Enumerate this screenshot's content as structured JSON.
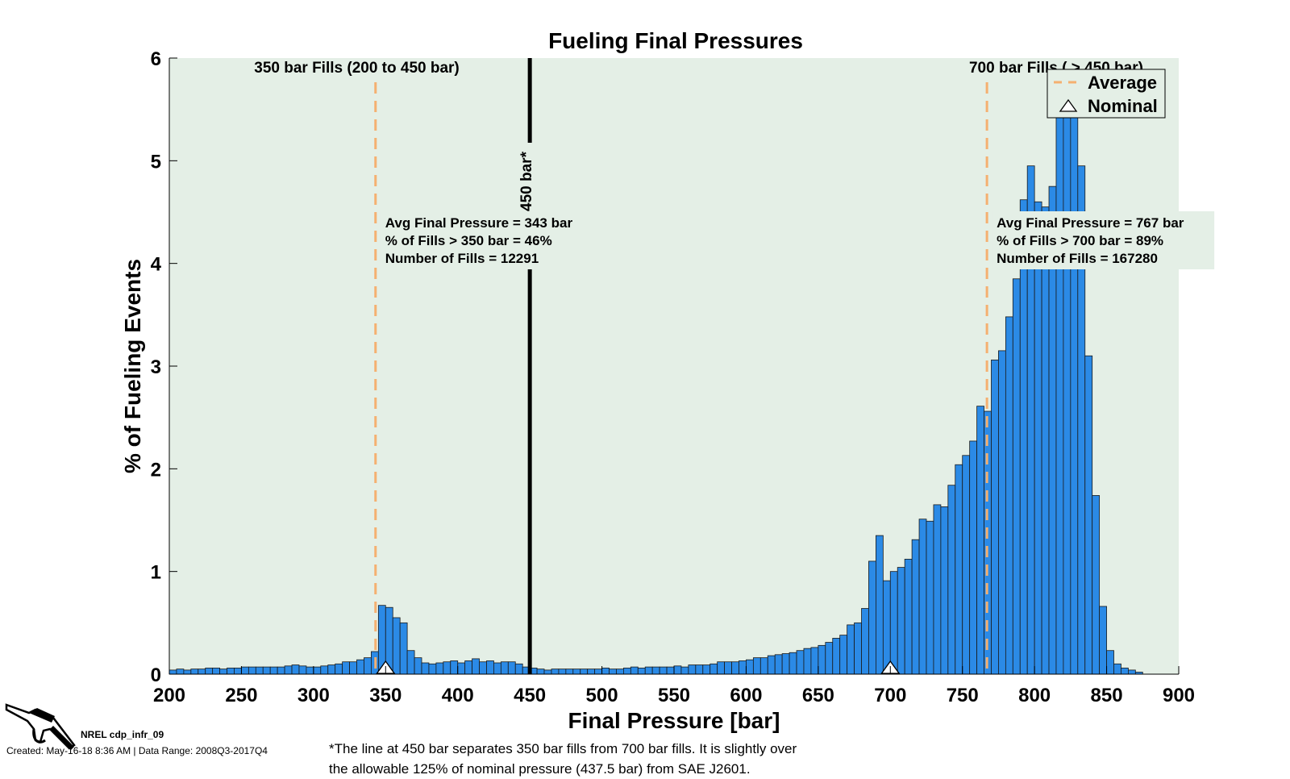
{
  "chart_data": {
    "type": "bar",
    "title": "Fueling Final Pressures",
    "xlabel": "Final Pressure [bar]",
    "ylabel": "% of Fueling Events",
    "xlim": [
      200,
      900
    ],
    "ylim": [
      0,
      6
    ],
    "xticks": [
      200,
      250,
      300,
      350,
      400,
      450,
      500,
      550,
      600,
      650,
      700,
      750,
      800,
      850,
      900
    ],
    "yticks": [
      0,
      1,
      2,
      3,
      4,
      5,
      6
    ],
    "bin_width": 5,
    "bin_start": 200,
    "values": [
      0.04,
      0.05,
      0.04,
      0.05,
      0.05,
      0.06,
      0.06,
      0.05,
      0.06,
      0.06,
      0.07,
      0.07,
      0.07,
      0.07,
      0.07,
      0.07,
      0.08,
      0.09,
      0.08,
      0.07,
      0.07,
      0.08,
      0.09,
      0.1,
      0.12,
      0.12,
      0.14,
      0.16,
      0.22,
      0.67,
      0.65,
      0.55,
      0.5,
      0.23,
      0.16,
      0.11,
      0.1,
      0.11,
      0.12,
      0.13,
      0.11,
      0.13,
      0.15,
      0.12,
      0.13,
      0.11,
      0.12,
      0.12,
      0.1,
      0.07,
      0.06,
      0.05,
      0.04,
      0.05,
      0.05,
      0.05,
      0.05,
      0.05,
      0.05,
      0.05,
      0.06,
      0.05,
      0.05,
      0.06,
      0.07,
      0.06,
      0.07,
      0.07,
      0.07,
      0.07,
      0.08,
      0.07,
      0.09,
      0.09,
      0.09,
      0.1,
      0.12,
      0.12,
      0.12,
      0.13,
      0.14,
      0.16,
      0.16,
      0.18,
      0.19,
      0.2,
      0.21,
      0.23,
      0.25,
      0.26,
      0.28,
      0.31,
      0.35,
      0.38,
      0.48,
      0.5,
      0.64,
      1.1,
      1.35,
      0.91,
      1.0,
      1.04,
      1.12,
      1.31,
      1.51,
      1.49,
      1.65,
      1.63,
      1.84,
      2.04,
      2.13,
      2.27,
      2.61,
      2.56,
      3.06,
      3.15,
      3.48,
      3.85,
      4.62,
      4.95,
      4.6,
      4.55,
      4.75,
      5.6,
      5.45,
      5.6,
      4.95,
      3.1,
      1.74,
      0.66,
      0.23,
      0.1,
      0.06,
      0.04,
      0.02,
      0.0,
      0.0,
      0.0,
      0.0,
      0.0,
      0.0,
      0.0,
      0.0,
      0.0,
      0.0
    ],
    "bar_color": "#2b8ae6",
    "plot_background": "#e4efe6",
    "separator": {
      "x": 450,
      "label": "450 bar*",
      "color": "#000000"
    },
    "regions": [
      {
        "label": "350 bar Fills (200 to 450 bar)",
        "average": 343,
        "nominal": 350,
        "stats": [
          "Avg Final Pressure = 343 bar",
          "% of Fills > 350 bar = 46%",
          "Number of Fills = 12291"
        ]
      },
      {
        "label": "700 bar Fills ( > 450 bar)",
        "average": 767,
        "nominal": 700,
        "stats": [
          "Avg Final Pressure = 767 bar",
          "% of Fills > 700 bar = 89%",
          "Number of Fills = 167280"
        ]
      }
    ],
    "average_line_color": "#f5b070",
    "legend": {
      "position": "top-right",
      "entries": [
        "Average",
        "Nominal"
      ]
    }
  },
  "footer": {
    "chart_id": "NREL cdp_infr_09",
    "created": "Created: May-16-18  8:36 AM | Data Range: 2008Q3-2017Q4",
    "footnote_line1": "*The line at 450 bar separates 350 bar fills from 700 bar fills.  It is slightly over",
    "footnote_line2": "the allowable 125% of nominal pressure (437.5 bar) from SAE J2601."
  },
  "icons": {
    "logo": "fuel-nozzle-icon"
  }
}
